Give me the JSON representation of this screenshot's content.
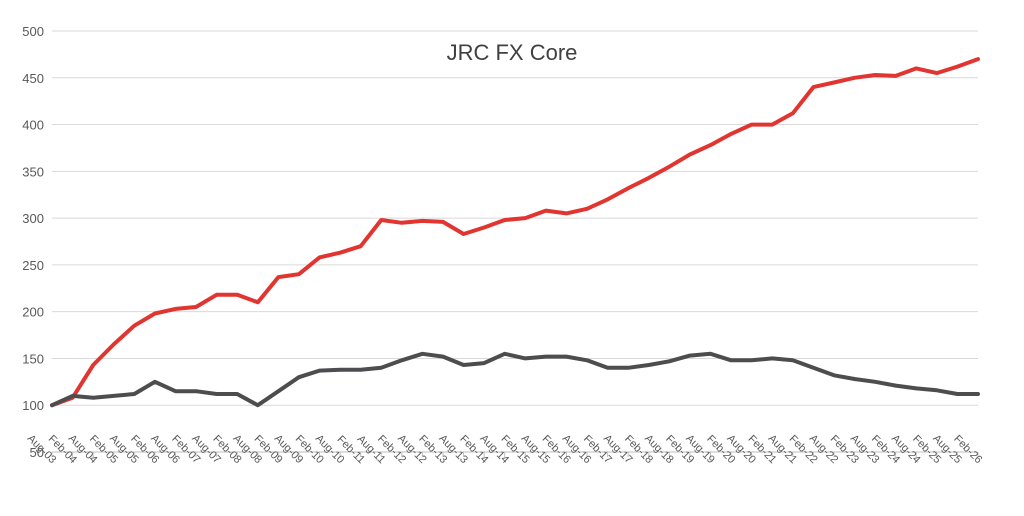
{
  "chart_data": {
    "type": "line",
    "title": "JRC FX Core",
    "xlabel": "",
    "ylabel": "",
    "ylim": [
      50,
      500
    ],
    "yticks": [
      50,
      100,
      150,
      200,
      250,
      300,
      350,
      400,
      450,
      500
    ],
    "grid": true,
    "x": [
      "Aug-03",
      "Feb-04",
      "Aug-04",
      "Feb-05",
      "Aug-05",
      "Feb-06",
      "Aug-06",
      "Feb-07",
      "Aug-07",
      "Feb-08",
      "Aug-08",
      "Feb-09",
      "Aug-09",
      "Feb-10",
      "Aug-10",
      "Feb-11",
      "Aug-11",
      "Feb-12",
      "Aug-12",
      "Feb-13",
      "Aug-13",
      "Feb-14",
      "Aug-14",
      "Feb-15",
      "Aug-15",
      "Feb-16",
      "Aug-16",
      "Feb-17",
      "Aug-17",
      "Feb-18",
      "Aug-18",
      "Feb-19",
      "Aug-19",
      "Feb-20",
      "Aug-20",
      "Feb-21",
      "Aug-21",
      "Feb-22",
      "Aug-22",
      "Feb-23",
      "Aug-23",
      "Feb-24",
      "Aug-24",
      "Feb-25",
      "Aug-25",
      "Feb-26"
    ],
    "series": [
      {
        "color": "#e03530",
        "values": [
          100,
          108,
          143,
          165,
          185,
          198,
          203,
          205,
          218,
          218,
          210,
          237,
          240,
          258,
          263,
          270,
          298,
          295,
          297,
          296,
          283,
          290,
          298,
          300,
          308,
          305,
          310,
          320,
          332,
          343,
          355,
          368,
          378,
          390,
          400,
          400,
          412,
          440,
          445,
          450,
          453,
          452,
          460,
          455,
          462,
          470
        ]
      },
      {
        "color": "#4d4d4f",
        "values": [
          100,
          110,
          108,
          110,
          112,
          125,
          115,
          115,
          112,
          112,
          100,
          115,
          130,
          137,
          138,
          138,
          140,
          148,
          155,
          152,
          143,
          145,
          155,
          150,
          152,
          152,
          148,
          140,
          140,
          143,
          147,
          153,
          155,
          148,
          148,
          150,
          148,
          140,
          132,
          128,
          125,
          121,
          118,
          116,
          112,
          112
        ]
      }
    ]
  }
}
